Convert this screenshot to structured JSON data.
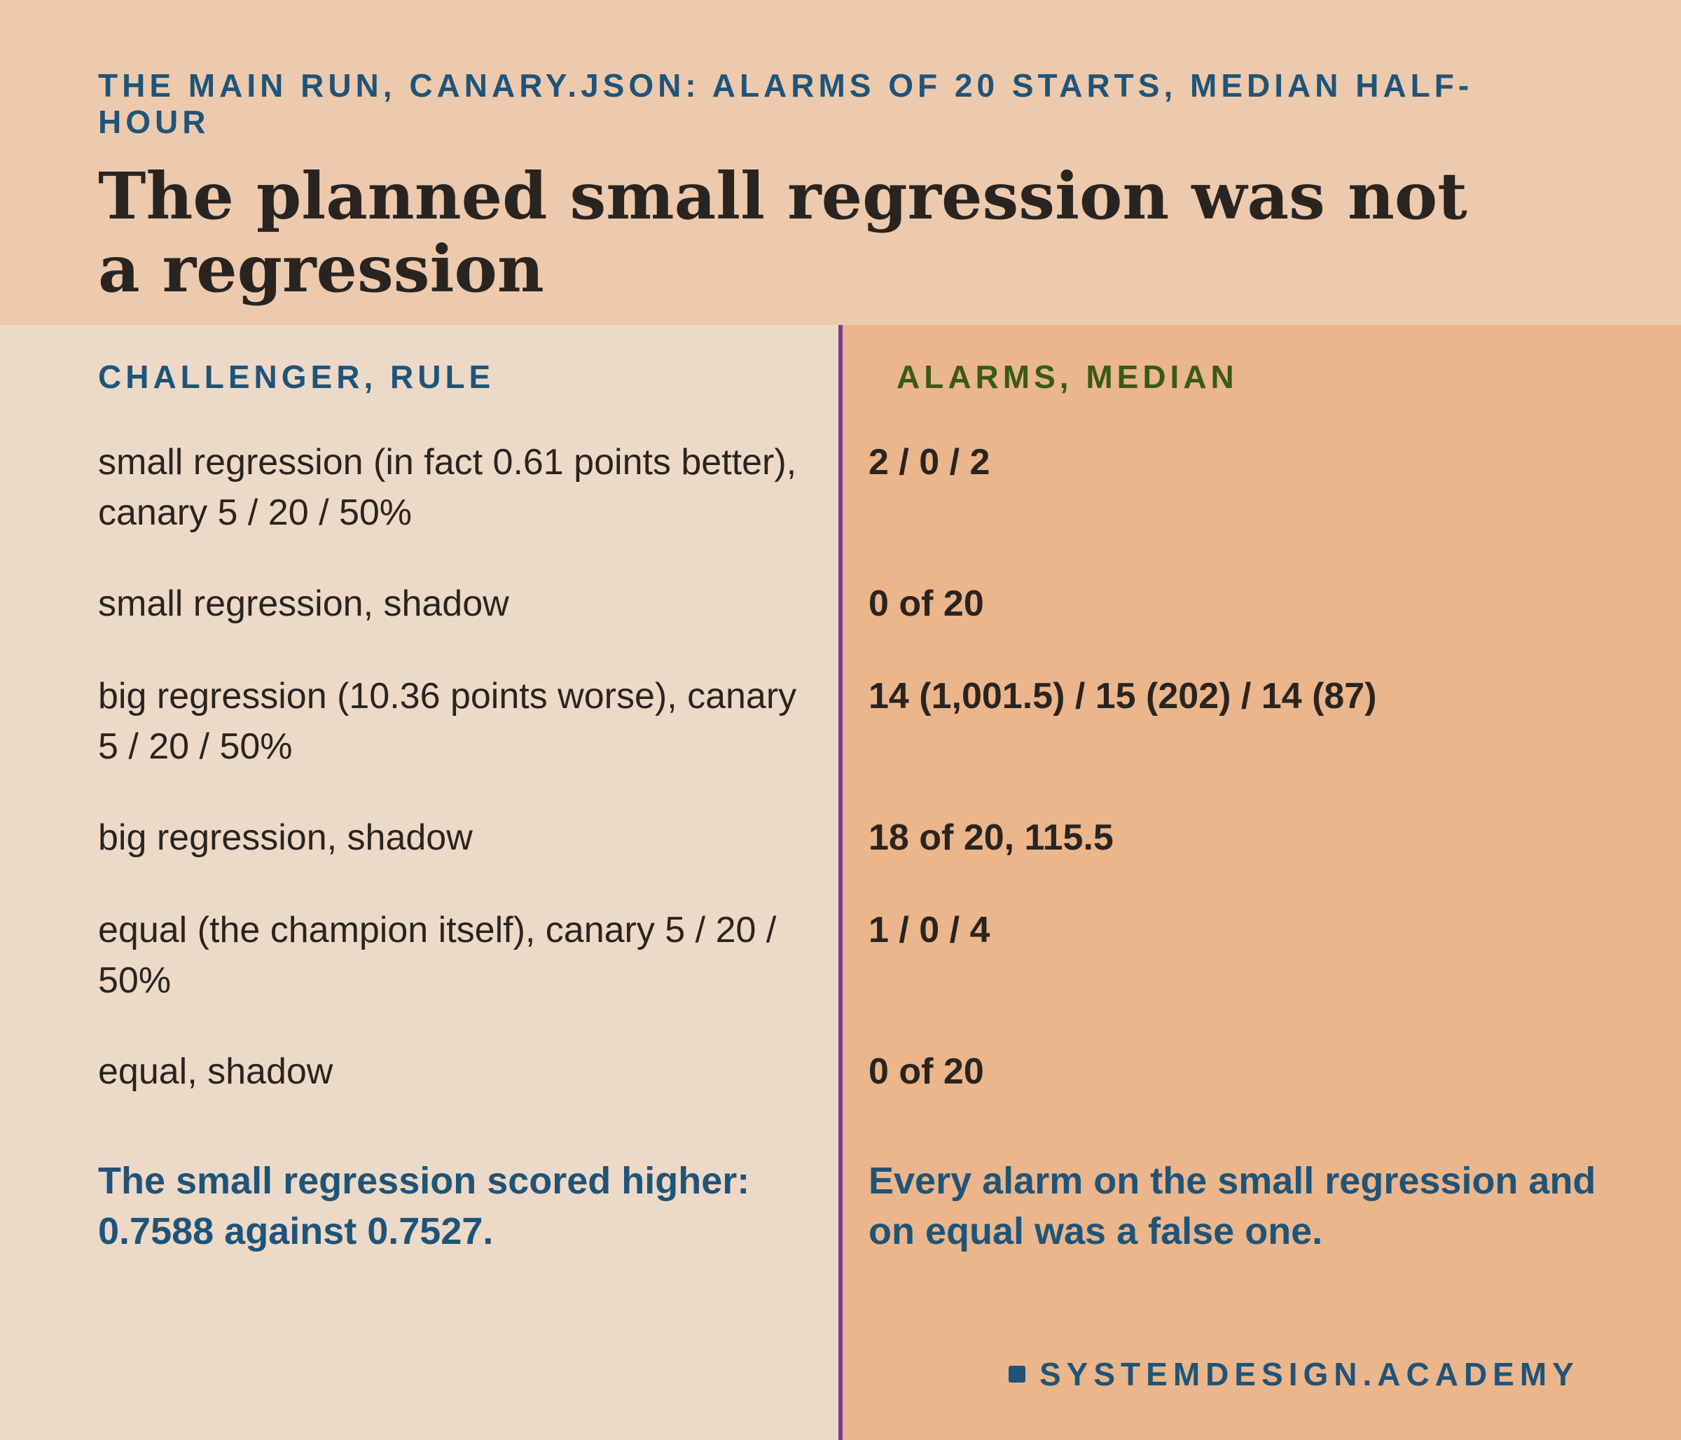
{
  "header": {
    "kicker": "THE MAIN RUN, CANARY.JSON: ALARMS OF 20 STARTS, MEDIAN HALF-HOUR",
    "title": "The planned small regression was not a regression"
  },
  "columns": {
    "left": "CHALLENGER, RULE",
    "right": "ALARMS, MEDIAN"
  },
  "rows": [
    {
      "rule": "small regression (in fact 0.61 points better), canary 5 / 20 / 50%",
      "alarms": "2 / 0 / 2"
    },
    {
      "rule": "small regression, shadow",
      "alarms": "0 of 20"
    },
    {
      "rule": "big regression (10.36 points worse), canary 5 / 20 / 50%",
      "alarms": "14 (1,001.5) / 15 (202) / 14 (87)"
    },
    {
      "rule": "big regression, shadow",
      "alarms": "18 of 20, 115.5"
    },
    {
      "rule": "equal (the champion itself), canary 5 / 20 / 50%",
      "alarms": "1 / 0 / 4"
    },
    {
      "rule": "equal, shadow",
      "alarms": "0 of 20"
    }
  ],
  "notes": {
    "left": "The small regression scored higher: 0.7588 against 0.7527.",
    "right": "Every alarm on the small regression and on equal was a false one."
  },
  "brand": "SYSTEMDESIGN.ACADEMY",
  "colors": {
    "header_bg": "#edcaad",
    "left_bg": "#edd9c7",
    "right_bg": "#ebb68b",
    "divider": "#7a3d97",
    "accent_blue": "#1f5479",
    "accent_green": "#3b5a12",
    "text": "#2a2420"
  }
}
